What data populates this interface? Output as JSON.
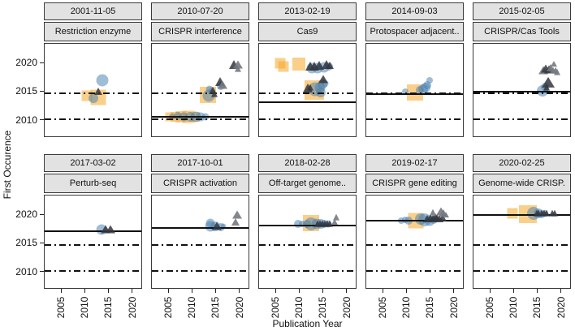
{
  "axes": {
    "ylabel": "First Occurence",
    "xlabel": "Publication Year",
    "y_ticks": [
      2020,
      2015,
      2010
    ],
    "x_ticks": [
      2005,
      2010,
      2015,
      2020
    ]
  },
  "colors": {
    "square_fill": "#f6a829",
    "circle_fill": "#4880b0",
    "triangle_dark": "#32363d",
    "triangle_gray": "#75797f",
    "strip_bg": "#e2e2e2",
    "line": "#111111"
  },
  "chart_data": {
    "type": "scatter",
    "layout": "facet-grid-2x5",
    "x_domain": [
      2001.4,
      2022.1
    ],
    "y_domain": [
      2007.0,
      2023.4
    ],
    "reference_lines_dashdot_years": [
      2014.8,
      2010.1
    ],
    "marker_types": {
      "s": "orange-square",
      "c": "blue-circle",
      "t": "dark-triangle",
      "g": "gray-triangle"
    },
    "facets": [
      {
        "date": "2001-11-05",
        "term": "Restriction enzyme",
        "solid_line_year": 2001.85,
        "points": [
          [
            2010.4,
            2014.2,
            "s",
            13
          ],
          [
            2012.8,
            2013.9,
            "s",
            19
          ],
          [
            2011.8,
            2013.8,
            "c",
            12
          ],
          [
            2013.7,
            2016.9,
            "c",
            15
          ],
          [
            2012.8,
            2014.9,
            "t",
            9
          ]
        ]
      },
      {
        "date": "2010-07-20",
        "term": "CRISPR interference",
        "solid_line_year": 2010.55,
        "points": [
          [
            2005.2,
            2010.5,
            "s",
            11
          ],
          [
            2006.4,
            2010.4,
            "s",
            12
          ],
          [
            2007.6,
            2010.5,
            "s",
            14
          ],
          [
            2009.2,
            2010.5,
            "s",
            15
          ],
          [
            2010.6,
            2010.4,
            "s",
            12
          ],
          [
            2013.4,
            2014.3,
            "s",
            20
          ],
          [
            2005.8,
            2010.5,
            "c",
            8
          ],
          [
            2007.0,
            2010.6,
            "c",
            10
          ],
          [
            2008.2,
            2010.5,
            "c",
            11
          ],
          [
            2009.6,
            2010.5,
            "c",
            12
          ],
          [
            2010.8,
            2010.5,
            "c",
            13
          ],
          [
            2011.9,
            2010.5,
            "c",
            11
          ],
          [
            2012.8,
            2010.5,
            "c",
            9
          ],
          [
            2013.5,
            2014.2,
            "c",
            15
          ],
          [
            2013.7,
            2015.3,
            "c",
            9
          ],
          [
            2014.3,
            2015.1,
            "c",
            8
          ],
          [
            2016.2,
            2015.9,
            "c",
            10
          ],
          [
            2014.5,
            2015.0,
            "t",
            9
          ],
          [
            2014.8,
            2014.5,
            "t",
            8
          ],
          [
            2016.0,
            2016.7,
            "t",
            11
          ],
          [
            2016.5,
            2016.1,
            "g",
            10
          ],
          [
            2018.9,
            2019.7,
            "t",
            11
          ],
          [
            2019.9,
            2019.7,
            "g",
            10
          ],
          [
            2019.9,
            2018.9,
            "g",
            8
          ]
        ]
      },
      {
        "date": "2013-02-19",
        "term": "Cas9",
        "solid_line_year": 2013.13,
        "points": [
          [
            2005.9,
            2020.0,
            "s",
            13
          ],
          [
            2006.7,
            2019.4,
            "s",
            13
          ],
          [
            2010.0,
            2019.8,
            "s",
            16
          ],
          [
            2013.2,
            2015.2,
            "s",
            24
          ],
          [
            2012.7,
            2019.1,
            "c",
            13
          ],
          [
            2013.9,
            2019.1,
            "c",
            13
          ],
          [
            2015.3,
            2019.2,
            "c",
            13
          ],
          [
            2016.3,
            2019.4,
            "c",
            10
          ],
          [
            2013.4,
            2015.3,
            "c",
            17
          ],
          [
            2014.4,
            2015.7,
            "c",
            13
          ],
          [
            2015.0,
            2016.2,
            "c",
            12
          ],
          [
            2015.5,
            2016.4,
            "c",
            9
          ],
          [
            2014.7,
            2014.8,
            "c",
            12
          ],
          [
            2012.4,
            2019.4,
            "t",
            11
          ],
          [
            2013.3,
            2019.4,
            "t",
            11
          ],
          [
            2014.3,
            2019.5,
            "t",
            11
          ],
          [
            2015.9,
            2019.7,
            "t",
            11
          ],
          [
            2016.5,
            2019.5,
            "t",
            9
          ],
          [
            2011.9,
            2015.5,
            "t",
            11
          ],
          [
            2012.4,
            2015.7,
            "t",
            8
          ],
          [
            2015.1,
            2017.0,
            "t",
            10
          ]
        ]
      },
      {
        "date": "2014-09-03",
        "term": "Protospacer adjacent..",
        "solid_line_year": 2014.67,
        "points": [
          [
            2009.8,
            2014.9,
            "c",
            8
          ],
          [
            2011.9,
            2014.8,
            "s",
            20
          ],
          [
            2012.9,
            2015.2,
            "c",
            10
          ],
          [
            2013.6,
            2015.3,
            "c",
            12
          ],
          [
            2014.1,
            2015.6,
            "c",
            12
          ],
          [
            2014.5,
            2016.0,
            "c",
            10
          ],
          [
            2015.0,
            2016.9,
            "c",
            8
          ]
        ]
      },
      {
        "date": "2015-02-05",
        "term": "CRISPR/Cas Tools",
        "solid_line_year": 2015.1,
        "points": [
          [
            2016.3,
            2018.7,
            "g",
            10
          ],
          [
            2016.9,
            2019.0,
            "t",
            10
          ],
          [
            2017.5,
            2018.8,
            "t",
            10
          ],
          [
            2017.9,
            2019.1,
            "g",
            9
          ],
          [
            2018.4,
            2018.7,
            "g",
            8
          ],
          [
            2018.9,
            2018.6,
            "g",
            8
          ],
          [
            2019.4,
            2018.4,
            "g",
            8
          ],
          [
            2018.6,
            2019.8,
            "g",
            7
          ],
          [
            2017.4,
            2016.5,
            "t",
            13
          ],
          [
            2016.7,
            2015.8,
            "c",
            10
          ],
          [
            2017.0,
            2015.6,
            "t",
            8
          ],
          [
            2016.1,
            2015.1,
            "c",
            14
          ]
        ]
      },
      {
        "date": "2017-03-02",
        "term": "Perturb-seq",
        "solid_line_year": 2017.17,
        "points": [
          [
            2013.5,
            2017.3,
            "c",
            13
          ],
          [
            2014.5,
            2017.4,
            "t",
            10
          ],
          [
            2015.5,
            2017.3,
            "t",
            10
          ]
        ]
      },
      {
        "date": "2017-10-01",
        "term": "CRISPR activation",
        "solid_line_year": 2017.75,
        "points": [
          [
            2019.6,
            2019.9,
            "g",
            10
          ],
          [
            2019.3,
            2018.6,
            "g",
            9
          ],
          [
            2013.9,
            2018.5,
            "c",
            11
          ],
          [
            2014.0,
            2017.9,
            "c",
            13
          ],
          [
            2015.0,
            2017.9,
            "c",
            12
          ],
          [
            2015.4,
            2018.0,
            "t",
            10
          ],
          [
            2016.2,
            2017.8,
            "c",
            10
          ],
          [
            2016.7,
            2017.9,
            "c",
            7
          ]
        ]
      },
      {
        "date": "2018-02-28",
        "term": "Off-target genome..",
        "solid_line_year": 2018.16,
        "points": [
          [
            2012.5,
            2018.5,
            "s",
            20
          ],
          [
            2009.8,
            2018.3,
            "c",
            10
          ],
          [
            2010.7,
            2018.3,
            "c",
            8
          ],
          [
            2011.6,
            2018.4,
            "c",
            10
          ],
          [
            2012.6,
            2018.3,
            "c",
            16
          ],
          [
            2013.7,
            2018.3,
            "c",
            13
          ],
          [
            2014.6,
            2018.4,
            "c",
            12
          ],
          [
            2015.4,
            2018.3,
            "c",
            10
          ],
          [
            2016.1,
            2018.4,
            "c",
            9
          ],
          [
            2013.9,
            2018.4,
            "t",
            8
          ],
          [
            2014.4,
            2018.3,
            "t",
            8
          ],
          [
            2015.0,
            2018.4,
            "t",
            8
          ],
          [
            2015.5,
            2018.4,
            "t",
            8
          ],
          [
            2016.0,
            2018.3,
            "t",
            8
          ],
          [
            2016.5,
            2018.4,
            "t",
            8
          ],
          [
            2017.9,
            2019.5,
            "g",
            8
          ],
          [
            2017.6,
            2018.7,
            "g",
            7
          ]
        ]
      },
      {
        "date": "2019-02-17",
        "term": "CRISPR gene editing",
        "solid_line_year": 2019.13,
        "points": [
          [
            2008.8,
            2019.0,
            "c",
            8
          ],
          [
            2009.7,
            2019.1,
            "c",
            8
          ],
          [
            2010.5,
            2019.0,
            "c",
            10
          ],
          [
            2012.0,
            2018.9,
            "s",
            19
          ],
          [
            2013.0,
            2019.2,
            "c",
            14
          ],
          [
            2014.0,
            2019.1,
            "c",
            16
          ],
          [
            2015.0,
            2019.0,
            "c",
            13
          ],
          [
            2015.9,
            2019.1,
            "c",
            10
          ],
          [
            2014.5,
            2019.3,
            "t",
            9
          ],
          [
            2015.1,
            2019.4,
            "t",
            9
          ],
          [
            2015.6,
            2019.3,
            "t",
            9
          ],
          [
            2016.1,
            2019.5,
            "t",
            9
          ],
          [
            2016.6,
            2019.4,
            "t",
            9
          ],
          [
            2017.1,
            2019.3,
            "t",
            9
          ],
          [
            2017.7,
            2019.4,
            "t",
            9
          ],
          [
            2015.6,
            2020.4,
            "g",
            8
          ],
          [
            2017.4,
            2020.5,
            "g",
            10
          ],
          [
            2018.0,
            2020.2,
            "g",
            9
          ],
          [
            2018.4,
            2019.9,
            "g",
            7
          ]
        ]
      },
      {
        "date": "2020-02-25",
        "term": "Genome-wide CRISP.",
        "solid_line_year": 2020.15,
        "points": [
          [
            2009.7,
            2020.3,
            "s",
            13
          ],
          [
            2013.0,
            2020.1,
            "s",
            22
          ],
          [
            2014.2,
            2020.2,
            "c",
            16
          ],
          [
            2015.3,
            2020.2,
            "c",
            12
          ],
          [
            2016.0,
            2020.1,
            "c",
            10
          ],
          [
            2016.7,
            2020.2,
            "c",
            8
          ],
          [
            2014.9,
            2020.3,
            "t",
            8
          ],
          [
            2015.4,
            2020.3,
            "t",
            8
          ],
          [
            2016.0,
            2020.3,
            "t",
            8
          ],
          [
            2016.5,
            2020.2,
            "t",
            8
          ],
          [
            2017.1,
            2020.3,
            "t",
            8
          ],
          [
            2018.3,
            2020.3,
            "t",
            8
          ],
          [
            2018.8,
            2020.3,
            "t",
            8
          ]
        ]
      }
    ]
  }
}
